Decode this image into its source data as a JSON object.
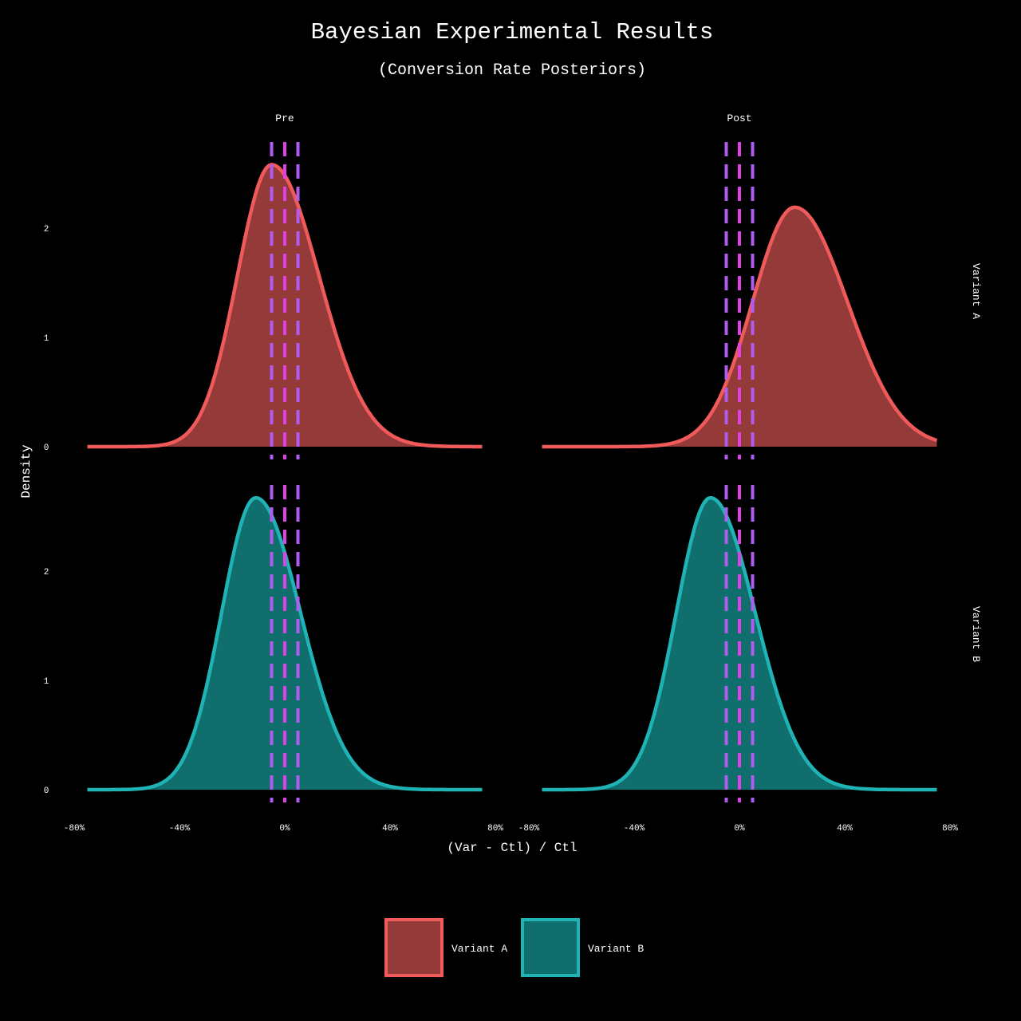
{
  "chart_data": {
    "type": "area",
    "title": "Bayesian Experimental Results",
    "subtitle": "(Conversion Rate Posteriors)",
    "xlabel": "(Var - Ctl) / Ctl",
    "ylabel": "Density",
    "xlim": [
      -0.8,
      0.8
    ],
    "ylim": [
      0,
      2.7
    ],
    "x_ticks": [
      -0.8,
      -0.4,
      0,
      0.4,
      0.8
    ],
    "x_tick_labels": [
      "-80%",
      "-40%",
      "0%",
      "40%",
      "80%"
    ],
    "y_ticks": [
      0,
      1,
      2
    ],
    "y_tick_labels": [
      "0",
      "1",
      "2"
    ],
    "columns": [
      "Pre",
      "Post"
    ],
    "rows": [
      "Variant A",
      "Variant B"
    ],
    "reference_lines": {
      "center": 0,
      "rope_low": -0.05,
      "rope_high": 0.05,
      "center_color": "#e040e8",
      "rope_color": "#b05cf0"
    },
    "series": [
      {
        "name": "Variant A",
        "fill": "#943a39",
        "stroke": "#f05a5a"
      },
      {
        "name": "Variant B",
        "fill": "#106e6d",
        "stroke": "#1fb3b5"
      }
    ],
    "panels": [
      {
        "column": "Pre",
        "row": "Variant A",
        "series": "Variant A",
        "mean": -0.05,
        "sd_left": 0.13,
        "sd_right": 0.18,
        "peak": 2.58,
        "x_range": [
          -0.75,
          0.75
        ]
      },
      {
        "column": "Post",
        "row": "Variant A",
        "series": "Variant A",
        "mean": 0.21,
        "sd_left": 0.16,
        "sd_right": 0.2,
        "peak": 2.19,
        "x_range": [
          -0.75,
          0.75
        ]
      },
      {
        "column": "Pre",
        "row": "Variant B",
        "series": "Variant B",
        "mean": -0.11,
        "sd_left": 0.13,
        "sd_right": 0.17,
        "peak": 2.67,
        "x_range": [
          -0.75,
          0.75
        ]
      },
      {
        "column": "Post",
        "row": "Variant B",
        "series": "Variant B",
        "mean": -0.11,
        "sd_left": 0.13,
        "sd_right": 0.17,
        "peak": 2.67,
        "x_range": [
          -0.75,
          0.75
        ]
      }
    ],
    "legend": {
      "position": "bottom",
      "entries": [
        "Variant A",
        "Variant B"
      ]
    },
    "grid": false
  }
}
